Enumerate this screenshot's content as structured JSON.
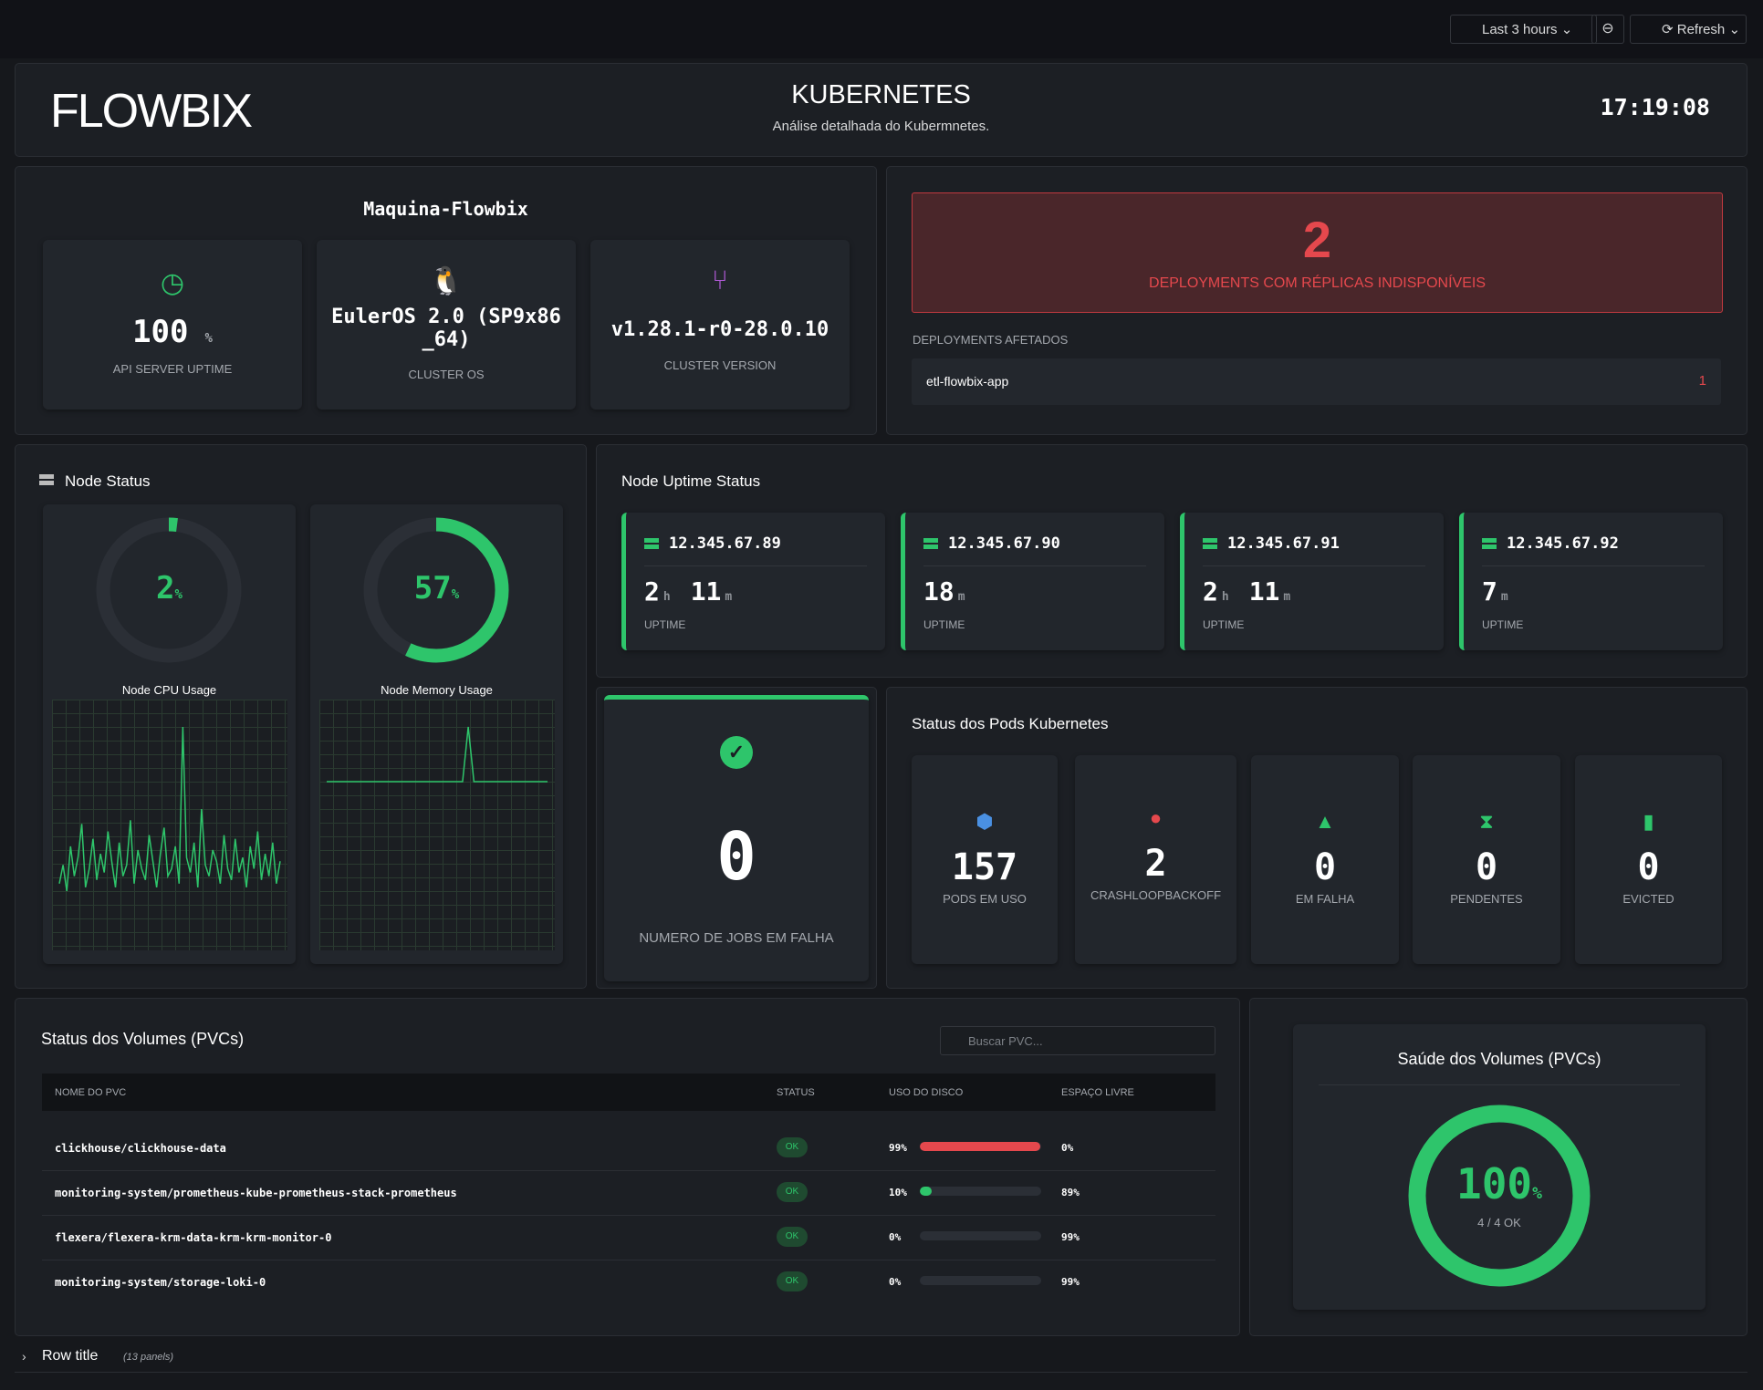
{
  "toolbar": {
    "time_range": "Last 3 hours",
    "refresh": "Refresh"
  },
  "header": {
    "logo": "FLOWBIX",
    "title": "KUBERNETES",
    "subtitle": "Análise detalhada do Kubermnetes.",
    "clock": "17:19:08"
  },
  "machine": {
    "title": "Maquina-Flowbix",
    "stats": [
      {
        "value": "100",
        "unit": "%",
        "label": "API SERVER UPTIME"
      },
      {
        "value": "EulerOS 2.0 (SP9x86_64)",
        "label": "CLUSTER OS"
      },
      {
        "value": "v1.28.1-r0-28.0.10",
        "label": "CLUSTER VERSION"
      }
    ]
  },
  "deployments": {
    "count": 2,
    "label": "DEPLOYMENTS COM RÉPLICAS INDISPONÍVEIS",
    "affected_title": "DEPLOYMENTS AFETADOS",
    "affected": [
      {
        "name": "etl-flowbix-app",
        "count": 1
      }
    ]
  },
  "node_status": {
    "title": "Node Status",
    "gauges": [
      {
        "value": 2,
        "unit": "%",
        "label": "Node CPU Usage",
        "color": "#2ec56b",
        "series": [
          1.6,
          2.1,
          1.4,
          2.6,
          1.8,
          2.3,
          3.2,
          1.5,
          2.0,
          2.8,
          1.7,
          2.4,
          1.9,
          3.0,
          2.2,
          1.5,
          2.7,
          1.8,
          2.1,
          3.3,
          1.6,
          2.5,
          2.0,
          1.7,
          2.9,
          2.2,
          1.5,
          2.4,
          3.1,
          1.8,
          2.0,
          2.6,
          1.6,
          5.8,
          2.3,
          1.9,
          2.7,
          1.5,
          3.6,
          2.1,
          1.8,
          2.5,
          2.2,
          1.6,
          2.9,
          2.0,
          1.7,
          2.8,
          1.9,
          2.3,
          1.5,
          2.6,
          2.0,
          3.0,
          1.7,
          2.4,
          1.8,
          2.7,
          1.6,
          2.2
        ]
      },
      {
        "value": 57,
        "unit": "%",
        "label": "Node Memory Usage",
        "color": "#2ec56b",
        "series": [
          57,
          57,
          57,
          57,
          57,
          57,
          57,
          57,
          57,
          57,
          57,
          57,
          57,
          57,
          57,
          57,
          57,
          57,
          57,
          57,
          57,
          57,
          57,
          57,
          57,
          60,
          57,
          57,
          57,
          57,
          57,
          57,
          57,
          57,
          57,
          57,
          57,
          57,
          57,
          57
        ]
      }
    ]
  },
  "uptime": {
    "title": "Node Uptime Status",
    "label": "UPTIME",
    "nodes": [
      {
        "ip": "12.345.67.89",
        "parts": [
          {
            "value": 2,
            "unit": "h"
          },
          {
            "value": 11,
            "unit": "m"
          }
        ]
      },
      {
        "ip": "12.345.67.90",
        "parts": [
          {
            "value": 18,
            "unit": "m"
          }
        ]
      },
      {
        "ip": "12.345.67.91",
        "parts": [
          {
            "value": 2,
            "unit": "h"
          },
          {
            "value": 11,
            "unit": "m"
          }
        ]
      },
      {
        "ip": "12.345.67.92",
        "parts": [
          {
            "value": 7,
            "unit": "m"
          }
        ]
      }
    ]
  },
  "jobs": {
    "value": 0,
    "label": "NUMERO DE JOBS EM FALHA"
  },
  "pods": {
    "title": "Status dos Pods Kubernetes",
    "items": [
      {
        "value": 157,
        "label": "PODS EM USO",
        "color": "#4a90e2"
      },
      {
        "value": 2,
        "label": "CRASHLOOPBACKOFF",
        "color": "#e5484d"
      },
      {
        "value": 0,
        "label": "EM FALHA",
        "color": "#2ec56b"
      },
      {
        "value": 0,
        "label": "PENDENTES",
        "color": "#2ec56b"
      },
      {
        "value": 0,
        "label": "EVICTED",
        "color": "#2ec56b"
      }
    ]
  },
  "pvcs": {
    "title": "Status dos Volumes (PVCs)",
    "search_placeholder": "Buscar PVC...",
    "columns": [
      "NOME DO PVC",
      "STATUS",
      "USO DO DISCO",
      "ESPAÇO LIVRE"
    ],
    "rows": [
      {
        "name": "clickhouse/clickhouse-data",
        "status": "OK",
        "usage": 99,
        "usage_label": "99%",
        "free": "0%",
        "color": "#e5484d"
      },
      {
        "name": "monitoring-system/prometheus-kube-prometheus-stack-prometheus",
        "status": "OK",
        "usage": 10,
        "usage_label": "10%",
        "free": "89%",
        "color": "#2ec56b"
      },
      {
        "name": "flexera/flexera-krm-data-krm-krm-monitor-0",
        "status": "OK",
        "usage": 0,
        "usage_label": "0%",
        "free": "99%",
        "color": "#2ec56b"
      },
      {
        "name": "monitoring-system/storage-loki-0",
        "status": "OK",
        "usage": 0,
        "usage_label": "0%",
        "free": "99%",
        "color": "#2ec56b"
      }
    ]
  },
  "pvc_health": {
    "title": "Saúde dos Volumes (PVCs)",
    "value": 100,
    "unit": "%",
    "ok_text": "4 / 4 OK",
    "color": "#2ec56b"
  },
  "row": {
    "title": "Row title",
    "panels": "(13 panels)"
  }
}
